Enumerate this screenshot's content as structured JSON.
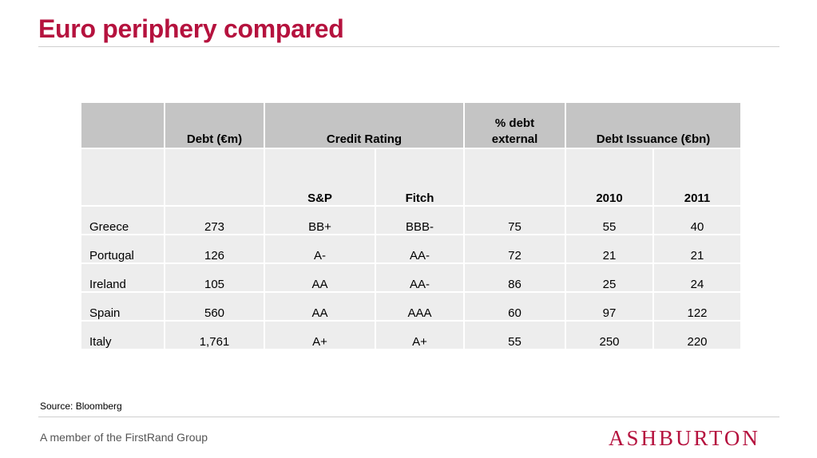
{
  "slide": {
    "title": "Euro periphery compared",
    "source": "Source: Bloomberg",
    "footer": "A member of the FirstRand Group",
    "logo": "ASHBURTON",
    "brand_color": "#b5123e"
  },
  "table": {
    "headers": {
      "debt": "Debt (€m)",
      "credit_rating": "Credit Rating",
      "pct_debt_line1": "% debt",
      "pct_debt_line2": "external",
      "debt_issuance": "Debt Issuance (€bn)",
      "sp": "S&P",
      "fitch": "Fitch",
      "y2010": "2010",
      "y2011": "2011"
    },
    "rows": [
      {
        "country": "Greece",
        "debt": "273",
        "sp": "BB+",
        "fitch": "BBB-",
        "pct": "75",
        "y2010": "55",
        "y2011": "40"
      },
      {
        "country": "Portugal",
        "debt": "126",
        "sp": "A-",
        "fitch": "AA-",
        "pct": "72",
        "y2010": "21",
        "y2011": "21"
      },
      {
        "country": "Ireland",
        "debt": "105",
        "sp": "AA",
        "fitch": "AA-",
        "pct": "86",
        "y2010": "25",
        "y2011": "24"
      },
      {
        "country": "Spain",
        "debt": "560",
        "sp": "AA",
        "fitch": "AAA",
        "pct": "60",
        "y2010": "97",
        "y2011": "122"
      },
      {
        "country": "Italy",
        "debt": "1,761",
        "sp": "A+",
        "fitch": "A+",
        "pct": "55",
        "y2010": "250",
        "y2011": "220"
      }
    ]
  }
}
